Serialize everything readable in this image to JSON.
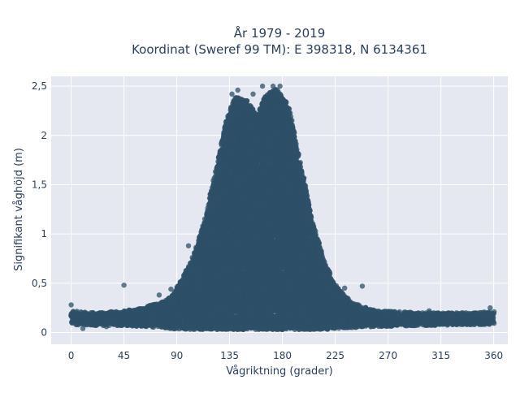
{
  "chart_data": {
    "type": "scatter",
    "title_line1": "År 1979 - 2019",
    "title_line2": "Koordinat (Sweref 99 TM): E 398318, N 6134361",
    "xlabel": "Vågriktning (grader)",
    "ylabel": "Signifikant våghöjd (m)",
    "xlim": [
      -17,
      372
    ],
    "ylim": [
      -0.12,
      2.6
    ],
    "x_ticks": [
      {
        "value": 0,
        "label": "0"
      },
      {
        "value": 45,
        "label": "45"
      },
      {
        "value": 90,
        "label": "90"
      },
      {
        "value": 135,
        "label": "135"
      },
      {
        "value": 180,
        "label": "180"
      },
      {
        "value": 225,
        "label": "225"
      },
      {
        "value": 270,
        "label": "270"
      },
      {
        "value": 315,
        "label": "315"
      },
      {
        "value": 360,
        "label": "360"
      }
    ],
    "y_ticks": [
      {
        "value": 0,
        "label": "0"
      },
      {
        "value": 0.5,
        "label": "0,5"
      },
      {
        "value": 1,
        "label": "1"
      },
      {
        "value": 1.5,
        "label": "1,5"
      },
      {
        "value": 2,
        "label": "2"
      },
      {
        "value": 2.5,
        "label": "2,5"
      }
    ],
    "grid": true,
    "background_color": "#e5e8f0",
    "marker_color": "#2e5068",
    "series": [
      {
        "name": "",
        "envelope": [
          {
            "x": 0,
            "ymin": 0.08,
            "ymax": 0.22
          },
          {
            "x": 20,
            "ymin": 0.07,
            "ymax": 0.2
          },
          {
            "x": 45,
            "ymin": 0.07,
            "ymax": 0.22
          },
          {
            "x": 60,
            "ymin": 0.06,
            "ymax": 0.25
          },
          {
            "x": 75,
            "ymin": 0.05,
            "ymax": 0.3
          },
          {
            "x": 85,
            "ymin": 0.04,
            "ymax": 0.36
          },
          {
            "x": 95,
            "ymin": 0.03,
            "ymax": 0.55
          },
          {
            "x": 105,
            "ymin": 0.03,
            "ymax": 0.8
          },
          {
            "x": 115,
            "ymin": 0.03,
            "ymax": 1.2
          },
          {
            "x": 125,
            "ymin": 0.03,
            "ymax": 1.75
          },
          {
            "x": 132,
            "ymin": 0.03,
            "ymax": 2.15
          },
          {
            "x": 140,
            "ymin": 0.03,
            "ymax": 2.4
          },
          {
            "x": 150,
            "ymin": 0.03,
            "ymax": 2.35
          },
          {
            "x": 158,
            "ymin": 0.03,
            "ymax": 2.2
          },
          {
            "x": 165,
            "ymin": 0.03,
            "ymax": 2.4
          },
          {
            "x": 175,
            "ymin": 0.03,
            "ymax": 2.48
          },
          {
            "x": 185,
            "ymin": 0.03,
            "ymax": 2.3
          },
          {
            "x": 195,
            "ymin": 0.03,
            "ymax": 1.75
          },
          {
            "x": 205,
            "ymin": 0.03,
            "ymax": 1.15
          },
          {
            "x": 215,
            "ymin": 0.03,
            "ymax": 0.75
          },
          {
            "x": 225,
            "ymin": 0.04,
            "ymax": 0.48
          },
          {
            "x": 240,
            "ymin": 0.05,
            "ymax": 0.3
          },
          {
            "x": 260,
            "ymin": 0.06,
            "ymax": 0.22
          },
          {
            "x": 300,
            "ymin": 0.07,
            "ymax": 0.2
          },
          {
            "x": 340,
            "ymin": 0.08,
            "ymax": 0.2
          },
          {
            "x": 360,
            "ymin": 0.08,
            "ymax": 0.21
          }
        ],
        "points": [
          {
            "x": 0,
            "y": 0.28
          },
          {
            "x": 45,
            "y": 0.48
          },
          {
            "x": 75,
            "y": 0.38
          },
          {
            "x": 85,
            "y": 0.44
          },
          {
            "x": 92,
            "y": 0.41
          },
          {
            "x": 100,
            "y": 0.88
          },
          {
            "x": 137,
            "y": 2.42
          },
          {
            "x": 142,
            "y": 2.46
          },
          {
            "x": 155,
            "y": 2.42
          },
          {
            "x": 163,
            "y": 2.5
          },
          {
            "x": 172,
            "y": 2.5
          },
          {
            "x": 178,
            "y": 2.5
          },
          {
            "x": 233,
            "y": 0.45
          },
          {
            "x": 248,
            "y": 0.47
          },
          {
            "x": 10,
            "y": 0.04
          },
          {
            "x": 30,
            "y": 0.06
          },
          {
            "x": 305,
            "y": 0.22
          },
          {
            "x": 340,
            "y": 0.08
          },
          {
            "x": 357,
            "y": 0.25
          },
          {
            "x": 250,
            "y": 0.24
          },
          {
            "x": 270,
            "y": 0.2
          }
        ]
      }
    ]
  }
}
